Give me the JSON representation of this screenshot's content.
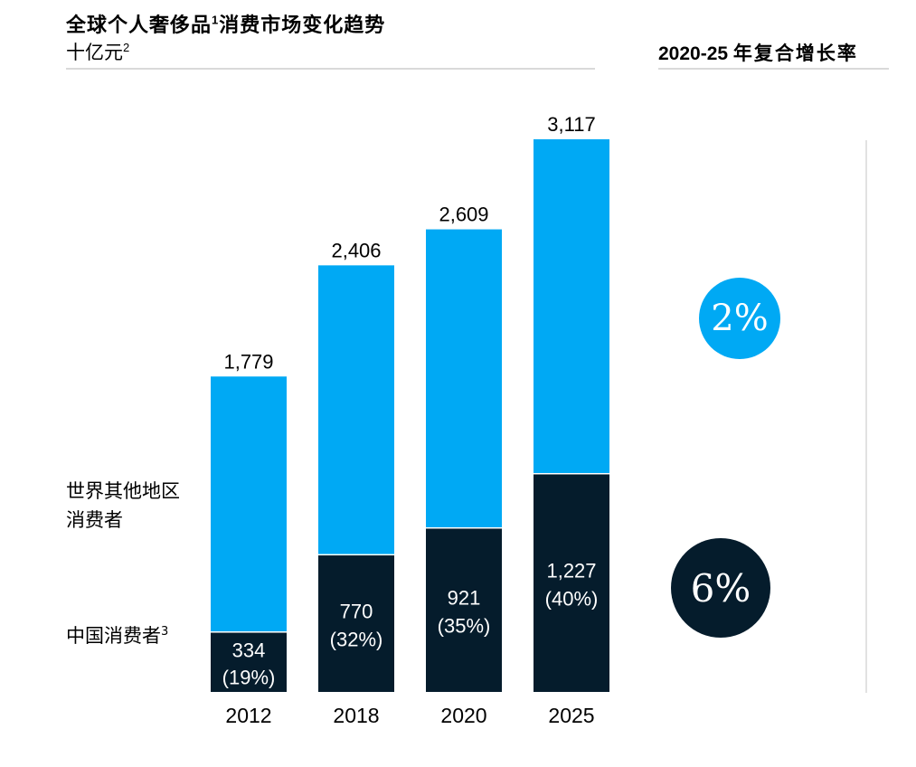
{
  "header": {
    "title": "全球个人奢侈品",
    "title_sup": "1",
    "title_rest": "消费市场变化趋势",
    "unit": "十亿元",
    "unit_sup": "2"
  },
  "cagr": {
    "title_num": "2020-25",
    "title_cn": "年复合增长率",
    "rest_of_world": "2%",
    "china": "6%"
  },
  "legend": {
    "rest_of_world": "世界其他地区消费者",
    "china": "中国消费者",
    "china_sup": "3"
  },
  "colors": {
    "rest_of_world": "#00A9F4",
    "china": "#051C2C"
  },
  "chart_data": {
    "type": "bar",
    "stacked": true,
    "categories": [
      "2012",
      "2018",
      "2020",
      "2025"
    ],
    "series": [
      {
        "name": "中国消费者",
        "values": [
          334,
          770,
          921,
          1227
        ],
        "share_labels": [
          "(19%)",
          "(32%)",
          "(35%)",
          "(40%)"
        ],
        "value_labels": [
          "334",
          "770",
          "921",
          "1,227"
        ]
      },
      {
        "name": "世界其他地区消费者",
        "values": [
          1445,
          1636,
          1688,
          1890
        ]
      }
    ],
    "totals": [
      1779,
      2406,
      2609,
      3117
    ],
    "total_labels": [
      "1,779",
      "2,406",
      "2,609",
      "3,117"
    ],
    "ylim": [
      0,
      3117
    ],
    "grid": false
  }
}
